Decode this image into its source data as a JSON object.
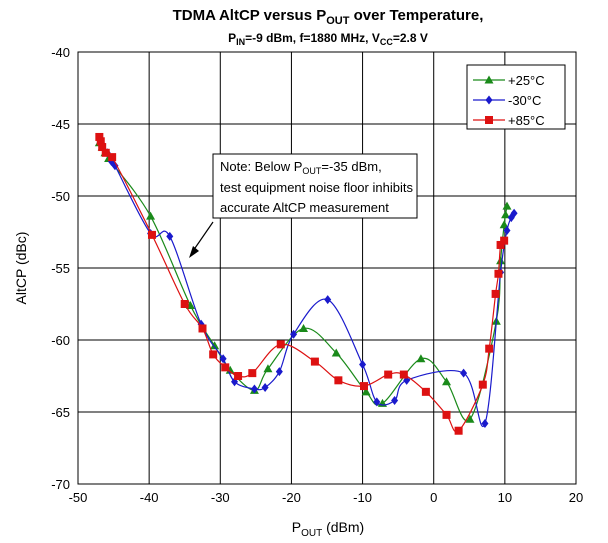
{
  "chart_data": {
    "type": "line",
    "title": "TDMA AltCP versus P",
    "title_sub": "OUT",
    "title_suffix": " over Temperature,",
    "subtitle": {
      "p": "P",
      "p_sub": "IN",
      "mid": "=-9 dBm, f=1880 MHz, V",
      "v_sub": "CC",
      "end": "=2.8 V"
    },
    "xlabel": "P",
    "xlabel_sub": "OUT",
    "xlabel_suffix": " (dBm)",
    "ylabel": "AltCP (dBc)",
    "xlim": [
      -50,
      20
    ],
    "ylim": [
      -70,
      -40
    ],
    "xticks": [
      -50,
      -40,
      -30,
      -20,
      -10,
      0,
      10,
      20
    ],
    "yticks": [
      -40,
      -45,
      -50,
      -55,
      -60,
      -65,
      -70
    ],
    "grid": true,
    "legend_position": "top-right",
    "note": {
      "line1_pre": "Note:  Below P",
      "line1_sub": "OUT",
      "line1_post": "=-35 dBm,",
      "line2": "test equipment noise floor inhibits",
      "line3": "accurate AltCP measurement"
    },
    "series": [
      {
        "name": "+25°C",
        "color": "#1a8a1a",
        "marker": "triangle",
        "x": [
          -47,
          -46.6,
          -46.2,
          -45.7,
          -39.8,
          -34.2,
          -30.8,
          -28.6,
          -25.2,
          -23.3,
          -18.3,
          -13.7,
          -9.5,
          -7.2,
          -1.8,
          1.8,
          5.1,
          8.8,
          9.4,
          9.9,
          10.1,
          10.3
        ],
        "y": [
          -46.3,
          -46.6,
          -47.0,
          -47.4,
          -51.4,
          -57.6,
          -60.4,
          -62.1,
          -63.5,
          -62.0,
          -59.2,
          -60.9,
          -63.6,
          -64.4,
          -61.3,
          -62.9,
          -65.5,
          -58.7,
          -54.5,
          -52.0,
          -51.3,
          -50.7
        ]
      },
      {
        "name": "-30°C",
        "color": "#1a1acc",
        "marker": "diamond",
        "x": [
          -47,
          -46.6,
          -45.9,
          -45.3,
          -44.8,
          -39.8,
          -37.1,
          -32.7,
          -29.6,
          -28.0,
          -25.2,
          -23.7,
          -21.7,
          -19.7,
          -14.9,
          -10.0,
          -8.0,
          -5.5,
          -3.8,
          4.2,
          7.2,
          9.4,
          10.3,
          10.9,
          11.3
        ],
        "y": [
          -46.0,
          -46.4,
          -47.0,
          -47.6,
          -47.9,
          -52.6,
          -52.8,
          -58.9,
          -61.3,
          -62.9,
          -63.4,
          -63.3,
          -62.2,
          -59.6,
          -57.2,
          -61.7,
          -64.3,
          -64.2,
          -62.8,
          -62.3,
          -65.8,
          -55.3,
          -52.4,
          -51.5,
          -51.2
        ]
      },
      {
        "name": "+85°C",
        "color": "#dd1111",
        "marker": "square",
        "x": [
          -47,
          -46.8,
          -46.6,
          -46.1,
          -45.2,
          -39.6,
          -35.0,
          -32.5,
          -31.0,
          -29.3,
          -27.5,
          -25.5,
          -21.5,
          -16.7,
          -13.4,
          -9.8,
          -6.4,
          -4.2,
          -1.1,
          1.8,
          3.5,
          6.9,
          7.8,
          8.7,
          9.1,
          9.4,
          9.9
        ],
        "y": [
          -45.9,
          -46.2,
          -46.6,
          -47.0,
          -47.3,
          -52.7,
          -57.5,
          -59.2,
          -61.0,
          -61.9,
          -62.5,
          -62.3,
          -60.3,
          -61.5,
          -62.8,
          -63.2,
          -62.4,
          -62.4,
          -63.6,
          -65.2,
          -66.3,
          -63.1,
          -60.6,
          -56.8,
          -55.4,
          -53.4,
          -53.1
        ]
      }
    ]
  }
}
